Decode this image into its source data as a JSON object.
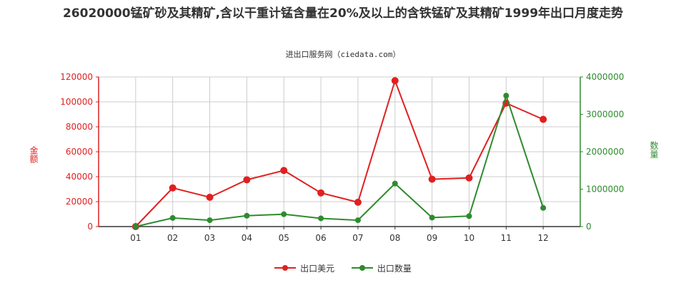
{
  "title": "26020000锰矿砂及其精矿,含以干重计锰含量在20%及以上的含铁锰矿及其精矿1999年出口月度走势",
  "source": "进出口服务网（ciedata.com）",
  "colors": {
    "series1": "#e02020",
    "series2": "#2e8b2e",
    "grid": "#cccccc",
    "axis": "#333333"
  },
  "chart_data": {
    "type": "line",
    "title": "26020000锰矿砂及其精矿,含以干重计锰含量在20%及以上的含铁锰矿及其精矿1999年出口月度走势",
    "categories": [
      "01",
      "02",
      "03",
      "04",
      "05",
      "06",
      "07",
      "08",
      "09",
      "10",
      "11",
      "12"
    ],
    "ylabel_left": "金额",
    "ylabel_right": "数量",
    "ylim_left": [
      0,
      120000
    ],
    "yticks_left": [
      0,
      20000,
      40000,
      60000,
      80000,
      100000,
      120000
    ],
    "ylim_right": [
      0,
      4000000
    ],
    "yticks_right": [
      0,
      1000000,
      2000000,
      3000000,
      4000000
    ],
    "grid": true,
    "legend_position": "bottom",
    "series": [
      {
        "name": "出口美元",
        "axis": "left",
        "values": [
          0,
          31000,
          23500,
          37500,
          45000,
          27000,
          19500,
          117000,
          38000,
          39000,
          99000,
          86000
        ]
      },
      {
        "name": "出口数量",
        "axis": "right",
        "values": [
          0,
          230000,
          170000,
          290000,
          330000,
          220000,
          170000,
          1150000,
          240000,
          280000,
          3500000,
          500000
        ]
      }
    ]
  }
}
